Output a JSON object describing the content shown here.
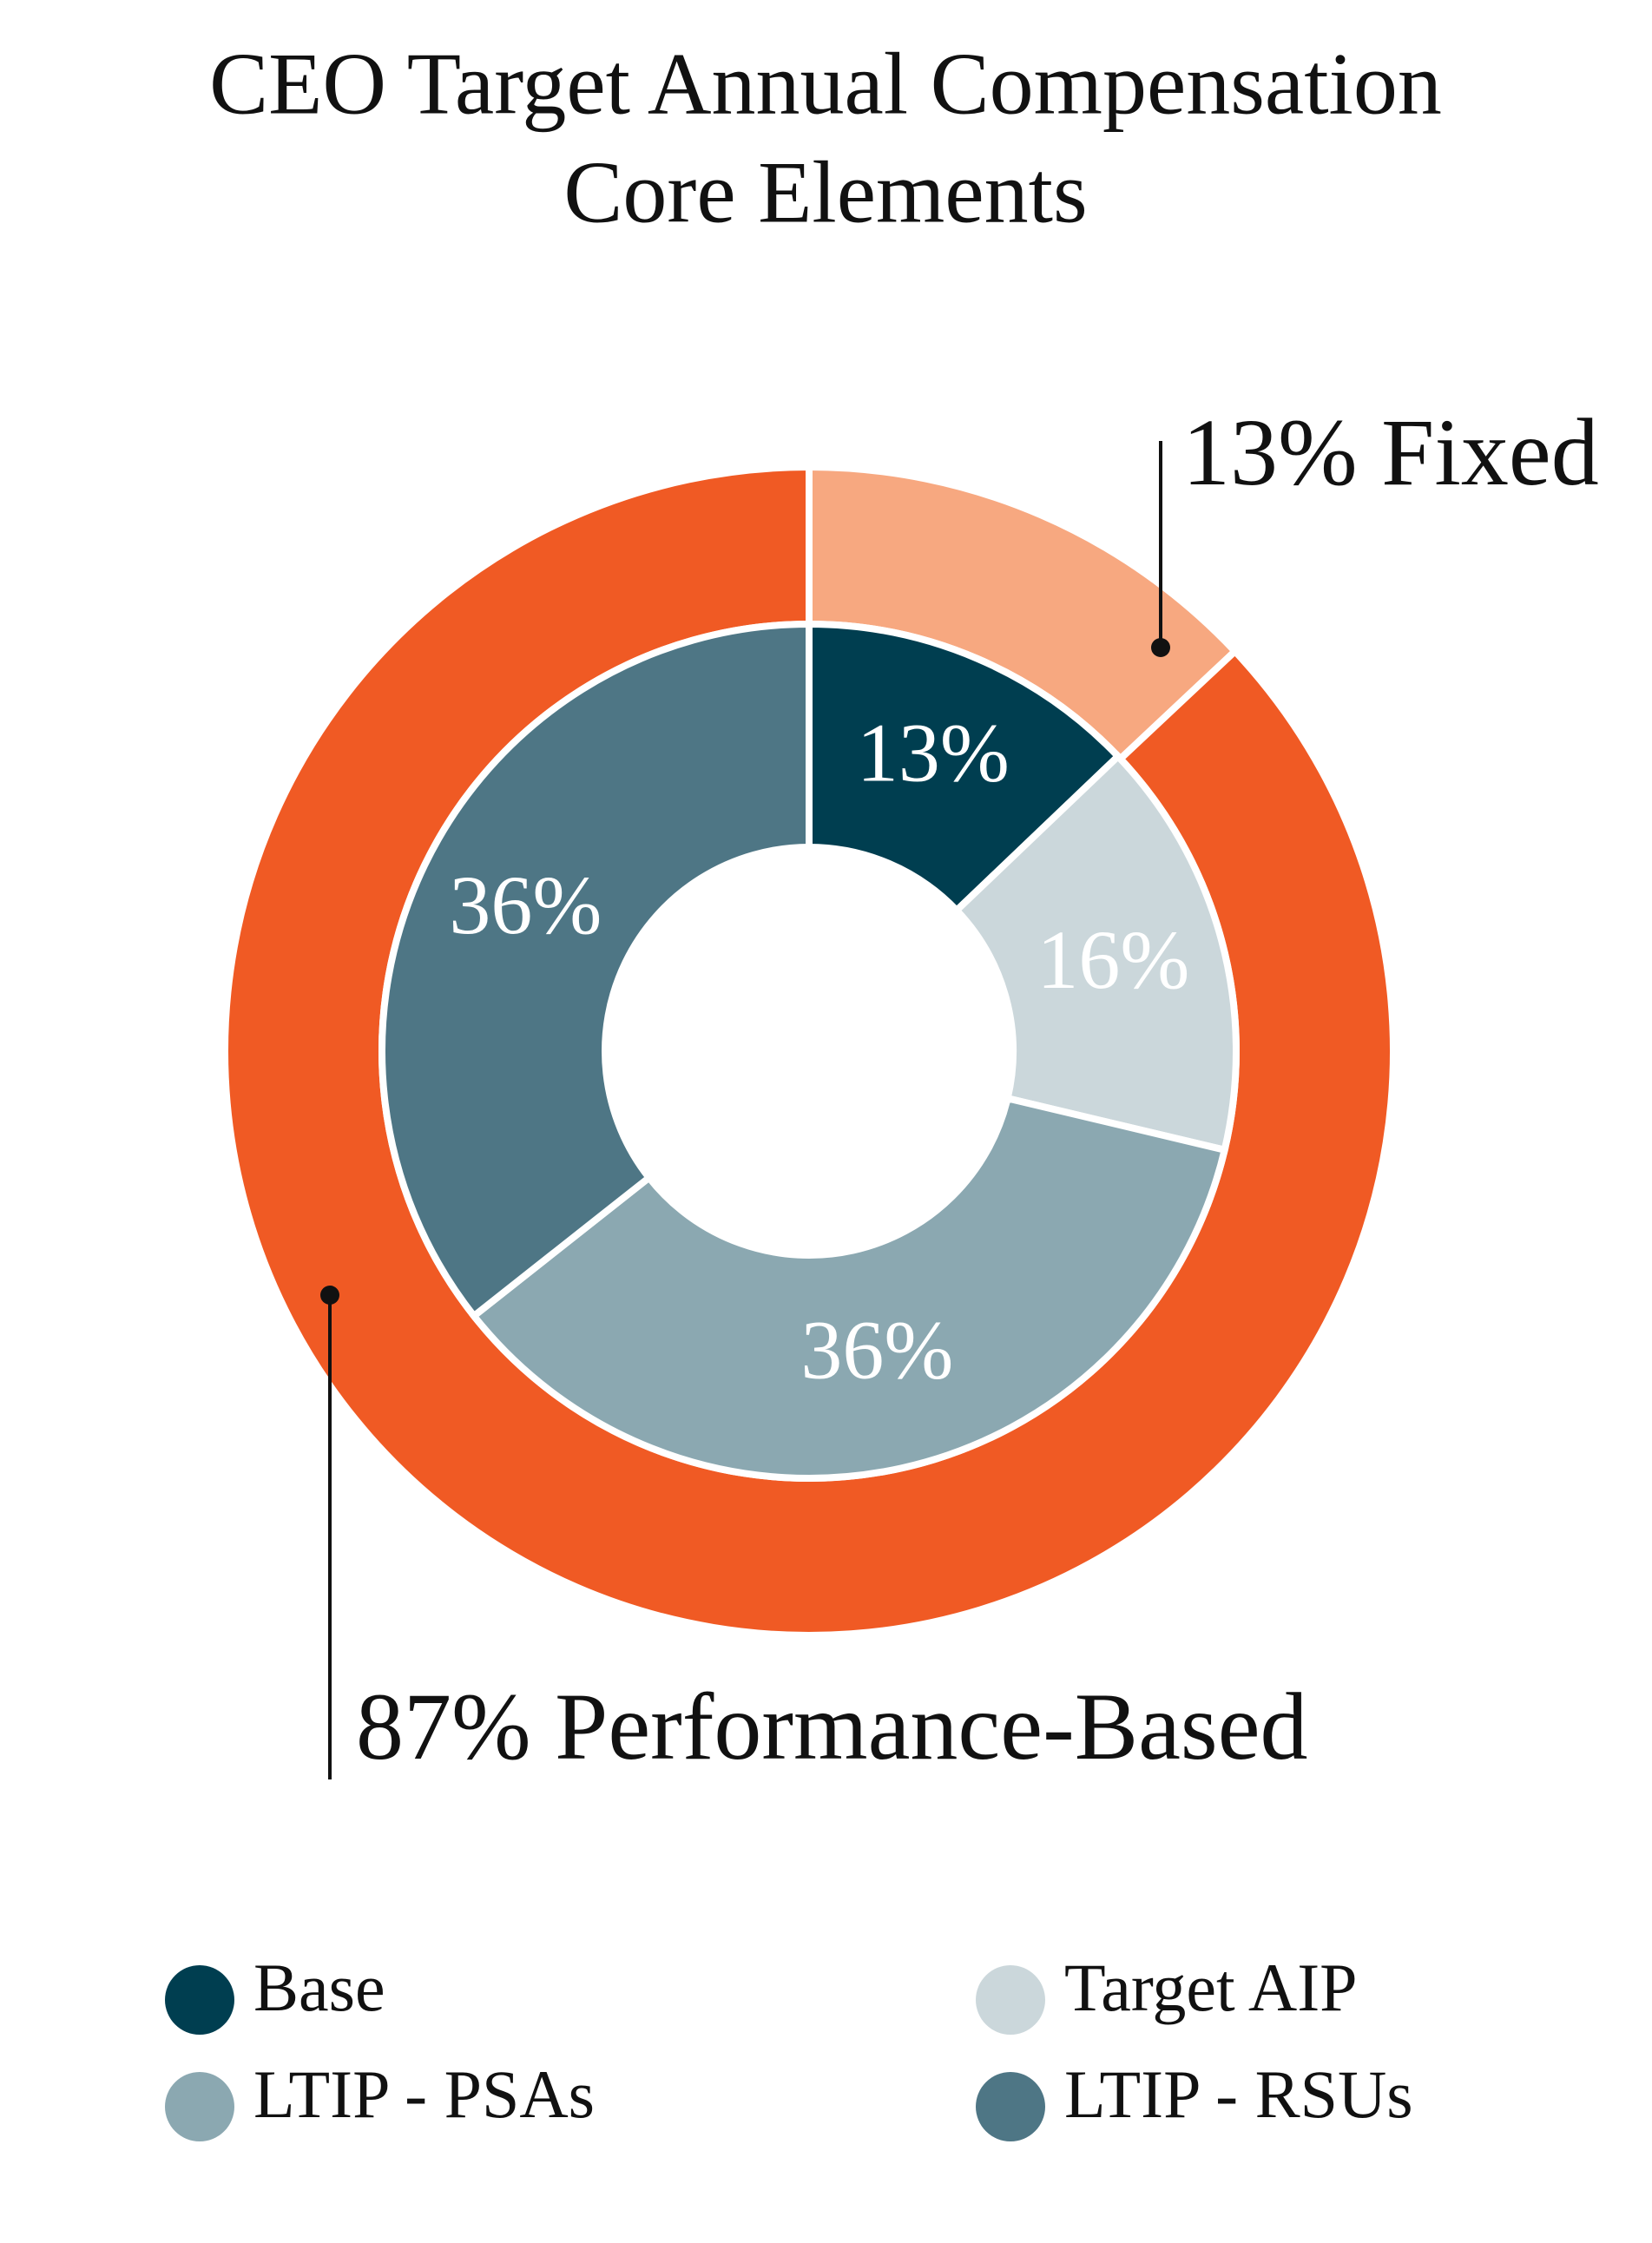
{
  "chart_data": {
    "type": "pie",
    "title": "CEO Target Annual Compensation",
    "subtitle": "Core Elements",
    "inner": {
      "categories": [
        "Base",
        "Target AIP",
        "LTIP - PSAs",
        "LTIP - RSUs"
      ],
      "values": [
        13,
        16,
        36,
        36
      ],
      "value_labels": [
        "13%",
        "16%",
        "36%",
        "36%"
      ],
      "colors": [
        "#003e50",
        "#cbd7db",
        "#8ba8b1",
        "#4e7685"
      ]
    },
    "outer": {
      "categories": [
        "Fixed",
        "Performance-Based"
      ],
      "values": [
        13,
        87
      ],
      "value_labels": [
        "13%",
        "87%"
      ],
      "colors": [
        "#f7a880",
        "#f05a24"
      ]
    }
  }
}
